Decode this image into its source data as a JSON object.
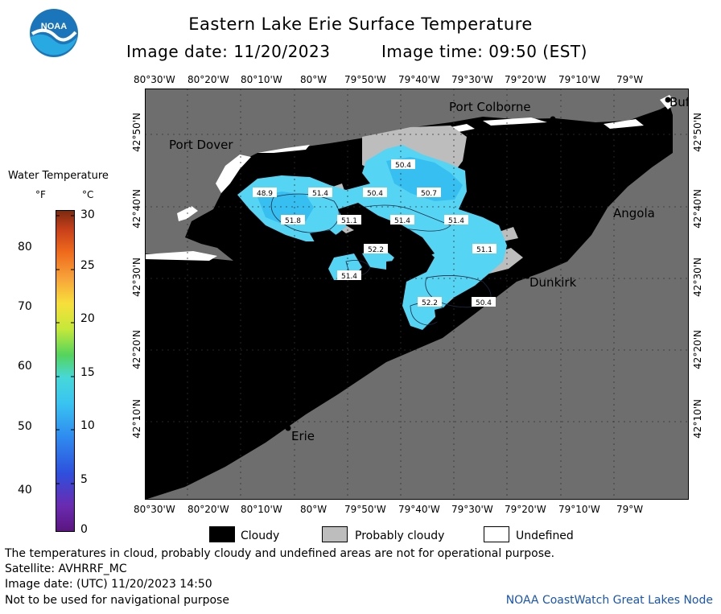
{
  "header": {
    "title": "Eastern Lake Erie Surface Temperature",
    "image_date": "Image date: 11/20/2023",
    "image_time": "Image time: 09:50 (EST)"
  },
  "lon_labels": [
    "80°30'W",
    "80°20'W",
    "80°10'W",
    "80°W",
    "79°50'W",
    "79°40'W",
    "79°30'W",
    "79°20'W",
    "79°10'W",
    "79°W"
  ],
  "lat_labels": [
    "42°50'N",
    "42°40'N",
    "42°30'N",
    "42°20'N",
    "42°10'N"
  ],
  "places": {
    "port_colborne": "Port Colborne",
    "port_dover": "Port Dover",
    "angola": "Angola",
    "dunkirk": "Dunkirk",
    "erie": "Erie",
    "buffalo": "Buf"
  },
  "temperature_labels": [
    "50.4",
    "48.9",
    "51.4",
    "50.4",
    "50.7",
    "51.8",
    "51.1",
    "51.4",
    "51.4",
    "52.2",
    "51.1",
    "51.4",
    "52.2",
    "50.4"
  ],
  "legend": {
    "title": "Water Temperature",
    "unit_f": "°F",
    "unit_c": "°C",
    "f_ticks": [
      "40",
      "50",
      "60",
      "70",
      "80"
    ],
    "c_ticks": [
      "0",
      "5",
      "10",
      "15",
      "20",
      "25",
      "30"
    ]
  },
  "key": {
    "cloudy": "Cloudy",
    "probably_cloudy": "Probably cloudy",
    "undefined": "Undefined"
  },
  "footer": {
    "note": "The temperatures in cloud, probably cloudy and undefined areas are not for operational purpose.",
    "satellite": "Satellite: AVHRRF_MC",
    "utc_date": "Image date: (UTC) 11/20/2023  14:50",
    "nav": "Not to be used for navigational purpose",
    "node": "NOAA CoastWatch Great Lakes Node",
    "logo_text": "NOAA"
  },
  "colors": {
    "land": "#6e6e6e",
    "cloud": "#000000",
    "probably_cloudy": "#bdbdbd",
    "undefined": "#ffffff",
    "water_cyan": "#55d4f3",
    "water_blue": "#36bff0"
  }
}
